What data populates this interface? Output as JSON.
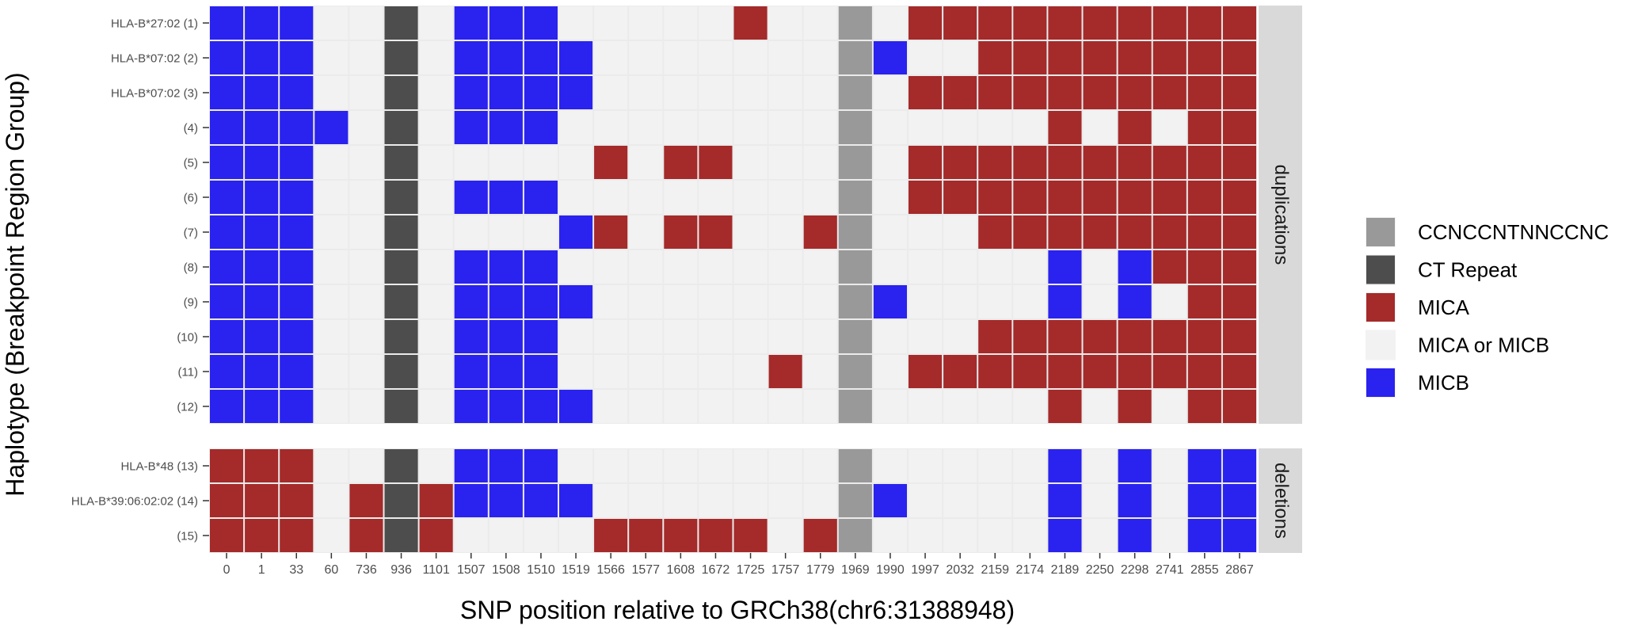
{
  "chart_data": {
    "type": "heatmap",
    "xlabel": "SNP position relative to GRCh38(chr6:31388948)",
    "ylabel": "Haplotype (Breakpoint Region Group)",
    "x": [
      "0",
      "1",
      "33",
      "60",
      "736",
      "936",
      "1101",
      "1507",
      "1508",
      "1510",
      "1519",
      "1566",
      "1577",
      "1608",
      "1672",
      "1725",
      "1757",
      "1779",
      "1969",
      "1990",
      "1997",
      "2032",
      "2159",
      "2174",
      "2189",
      "2250",
      "2298",
      "2741",
      "2855",
      "2867"
    ],
    "legend": [
      {
        "code": "G",
        "label": "CCNCCNTNNCCNC",
        "color": "#999999"
      },
      {
        "code": "D",
        "label": "CT Repeat",
        "color": "#4d4d4d"
      },
      {
        "code": "R",
        "label": "MICA",
        "color": "#a52a2a"
      },
      {
        "code": "L",
        "label": "MICA or MICB",
        "color": "#f2f2f2"
      },
      {
        "code": "B",
        "label": "MICB",
        "color": "#2a22ee"
      }
    ],
    "legend_position": "right",
    "facets": [
      {
        "strip": "duplications",
        "rows": [
          {
            "label": "HLA-B*27:02 (1)",
            "cells": "BBBLLDLBBBLLLLLRLLGLRRRRRRRRRR"
          },
          {
            "label": "HLA-B*07:02 (2)",
            "cells": "BBBLLDLBBBBLLLLLLLGBLLRRRRRRRR"
          },
          {
            "label": "HLA-B*07:02 (3)",
            "cells": "BBBLLDLBBBBLLLLLLLGLRRRRRRRRRR"
          },
          {
            "label": "(4)",
            "cells": "BBBBLDLBBBLLLLLLLLGLLLLLRLRLRR"
          },
          {
            "label": "(5)",
            "cells": "BBBLLDLLLLLRLRRLLLGLRRRRRRRRRR"
          },
          {
            "label": "(6)",
            "cells": "BBBLLDLBBBLLLLLLLLGLRRRRRRRRRR"
          },
          {
            "label": "(7)",
            "cells": "BBBLLDLLLLBRLRRLLRGLLLRRRRRRRR"
          },
          {
            "label": "(8)",
            "cells": "BBBLLDLBBBLLLLLLLLGLLLLLBLBRRR"
          },
          {
            "label": "(9)",
            "cells": "BBBLLDLBBBBLLLLLLLGBLLLLBLBLRR"
          },
          {
            "label": "(10)",
            "cells": "BBBLLDLBBBLLLLLLLLGLLLRRRRRRRR"
          },
          {
            "label": "(11)",
            "cells": "BBBLLDLBBBLLLLLLRLGLRRRRRRRRRR"
          },
          {
            "label": "(12)",
            "cells": "BBBLLDLBBBBLLLLLLLGLLLLLRLRLRR"
          }
        ]
      },
      {
        "strip": "deletions",
        "rows": [
          {
            "label": "HLA-B*48 (13)",
            "cells": "RRRLLDLBBBLLLLLLLLGLLLLLBLBLBB"
          },
          {
            "label": "HLA-B*39:06:02:02 (14)",
            "cells": "RRRLRDRBBBBLLLLLLLGBLLLLBLBLBB"
          },
          {
            "label": "(15)",
            "cells": "RRRLRDRLLLLRRRRRLRGLLLLLBLBLBB"
          }
        ]
      }
    ]
  }
}
